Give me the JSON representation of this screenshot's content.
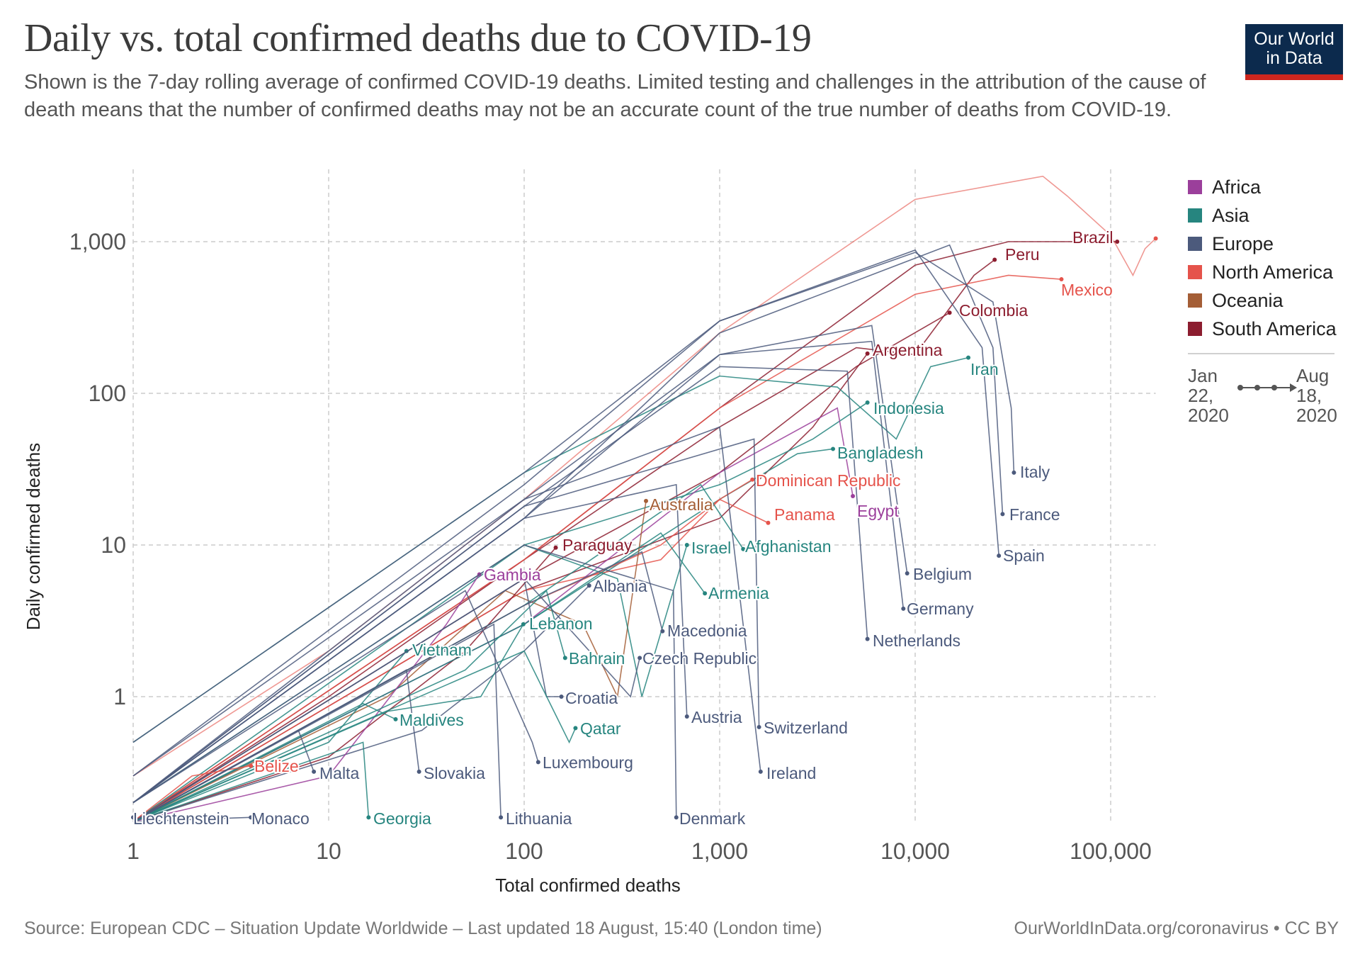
{
  "header": {
    "title": "Daily vs. total confirmed deaths due to COVID-19",
    "subtitle": "Shown is the 7-day rolling average of confirmed COVID-19 deaths. Limited testing and challenges in the attribution of the cause of death means that the number of confirmed deaths may not be an accurate count of the true number of deaths from COVID-19.",
    "logo_text": [
      "Our World",
      "in Data"
    ]
  },
  "legend": {
    "items": [
      {
        "label": "Africa",
        "color": "#9b3f9b"
      },
      {
        "label": "Asia",
        "color": "#26857f"
      },
      {
        "label": "Europe",
        "color": "#4c5a7c"
      },
      {
        "label": "North America",
        "color": "#e5534b"
      },
      {
        "label": "Oceania",
        "color": "#a45e36"
      },
      {
        "label": "South America",
        "color": "#8c1d2f"
      }
    ],
    "timeline_start": "Jan 22, 2020",
    "timeline_end": "Aug 18, 2020"
  },
  "footer": {
    "source": "Source: European CDC – Situation Update Worldwide – Last updated 18 August, 15:40 (London time)",
    "credit": "OurWorldInData.org/coronavirus • CC BY"
  },
  "chart_data": {
    "type": "line",
    "title": "Daily vs. total confirmed deaths due to COVID-19",
    "xlabel": "Total confirmed deaths",
    "ylabel": "Daily confirmed deaths",
    "x_scale": "log",
    "y_scale": "log",
    "xlim": [
      1,
      170000
    ],
    "ylim": [
      0.15,
      3000
    ],
    "x_ticks": [
      {
        "v": 1,
        "label": "1"
      },
      {
        "v": 10,
        "label": "10"
      },
      {
        "v": 100,
        "label": "100"
      },
      {
        "v": 1000,
        "label": "1,000"
      },
      {
        "v": 10000,
        "label": "10,000"
      },
      {
        "v": 100000,
        "label": "100,000"
      }
    ],
    "y_ticks": [
      {
        "v": 1,
        "label": "1"
      },
      {
        "v": 10,
        "label": "10"
      },
      {
        "v": 100,
        "label": "100"
      },
      {
        "v": 1000,
        "label": "1,000"
      }
    ],
    "grid": true,
    "legend_position": "right",
    "series": [
      {
        "continent": "North America",
        "points": [
          [
            1,
            0.3
          ],
          [
            10,
            2
          ],
          [
            100,
            20
          ],
          [
            1000,
            250
          ],
          [
            10000,
            1900
          ],
          [
            45000,
            2700
          ],
          [
            60000,
            2000
          ],
          [
            100000,
            1100
          ],
          [
            130000,
            600
          ],
          [
            150000,
            900
          ],
          [
            170000,
            1050
          ]
        ]
      },
      {
        "name": "Brazil",
        "continent": "South America",
        "points": [
          [
            1,
            0.15
          ],
          [
            10,
            1
          ],
          [
            100,
            8
          ],
          [
            1000,
            80
          ],
          [
            10000,
            700
          ],
          [
            30000,
            1000
          ],
          [
            108000,
            1000
          ]
        ]
      },
      {
        "name": "Peru",
        "continent": "South America",
        "points": [
          [
            1,
            0.15
          ],
          [
            100,
            8
          ],
          [
            1000,
            60
          ],
          [
            5000,
            200
          ],
          [
            10000,
            180
          ],
          [
            20000,
            600
          ],
          [
            25500,
            760
          ]
        ]
      },
      {
        "name": "Mexico",
        "continent": "North America",
        "points": [
          [
            1,
            0.15
          ],
          [
            100,
            8
          ],
          [
            1000,
            80
          ],
          [
            10000,
            450
          ],
          [
            30000,
            600
          ],
          [
            56000,
            565
          ]
        ]
      },
      {
        "name": "Colombia",
        "continent": "South America",
        "points": [
          [
            1,
            0.15
          ],
          [
            100,
            6
          ],
          [
            1000,
            30
          ],
          [
            5000,
            150
          ],
          [
            15000,
            340
          ]
        ]
      },
      {
        "name": "Argentina",
        "continent": "South America",
        "points": [
          [
            1,
            0.15
          ],
          [
            100,
            5
          ],
          [
            1000,
            15
          ],
          [
            3000,
            60
          ],
          [
            5700,
            183
          ]
        ]
      },
      {
        "name": "Iran",
        "continent": "Asia",
        "points": [
          [
            1,
            0.5
          ],
          [
            100,
            30
          ],
          [
            1000,
            130
          ],
          [
            4000,
            110
          ],
          [
            8000,
            50
          ],
          [
            12000,
            150
          ],
          [
            18700,
            172
          ]
        ]
      },
      {
        "name": "Indonesia",
        "continent": "Asia",
        "points": [
          [
            1,
            0.2
          ],
          [
            100,
            10
          ],
          [
            1000,
            25
          ],
          [
            3000,
            50
          ],
          [
            5700,
            87
          ]
        ]
      },
      {
        "name": "Bangladesh",
        "continent": "Asia",
        "points": [
          [
            1,
            0.15
          ],
          [
            100,
            3
          ],
          [
            1000,
            20
          ],
          [
            2500,
            40
          ],
          [
            3800,
            43
          ]
        ]
      },
      {
        "name": "Dominican Republic",
        "continent": "North America",
        "points": [
          [
            1,
            0.15
          ],
          [
            100,
            4
          ],
          [
            500,
            10
          ],
          [
            1000,
            20
          ],
          [
            1470,
            27
          ]
        ]
      },
      {
        "name": "Panama",
        "continent": "North America",
        "points": [
          [
            1,
            0.15
          ],
          [
            100,
            5
          ],
          [
            500,
            8
          ],
          [
            1000,
            20
          ],
          [
            1770,
            14
          ]
        ]
      },
      {
        "name": "Egypt",
        "continent": "Africa",
        "points": [
          [
            1,
            0.15
          ],
          [
            100,
            3
          ],
          [
            1000,
            30
          ],
          [
            4000,
            80
          ],
          [
            4800,
            21
          ]
        ]
      },
      {
        "name": "Australia",
        "continent": "Oceania",
        "points": [
          [
            1,
            0.15
          ],
          [
            20,
            1
          ],
          [
            80,
            5
          ],
          [
            200,
            3
          ],
          [
            300,
            1
          ],
          [
            420,
            19.5
          ]
        ]
      },
      {
        "name": "Paraguay",
        "continent": "South America",
        "points": [
          [
            1,
            0.15
          ],
          [
            10,
            0.4
          ],
          [
            50,
            2
          ],
          [
            145,
            9.6
          ]
        ]
      },
      {
        "name": "Israel",
        "continent": "Asia",
        "points": [
          [
            1,
            0.15
          ],
          [
            100,
            10
          ],
          [
            300,
            6
          ],
          [
            400,
            1
          ],
          [
            680,
            10
          ]
        ]
      },
      {
        "name": "Afghanistan",
        "continent": "Asia",
        "points": [
          [
            1,
            0.15
          ],
          [
            100,
            4
          ],
          [
            800,
            25
          ],
          [
            1320,
            9.4
          ]
        ]
      },
      {
        "name": "Italy",
        "continent": "Europe",
        "points": [
          [
            1,
            0.5
          ],
          [
            100,
            30
          ],
          [
            1000,
            300
          ],
          [
            10000,
            850
          ],
          [
            25000,
            400
          ],
          [
            31000,
            80
          ],
          [
            32000,
            30
          ]
        ]
      },
      {
        "name": "France",
        "continent": "Europe",
        "points": [
          [
            1,
            0.2
          ],
          [
            100,
            15
          ],
          [
            1000,
            250
          ],
          [
            15000,
            950
          ],
          [
            25000,
            200
          ],
          [
            28000,
            16
          ]
        ]
      },
      {
        "name": "Spain",
        "continent": "Europe",
        "points": [
          [
            1,
            0.3
          ],
          [
            100,
            25
          ],
          [
            1000,
            300
          ],
          [
            10000,
            880
          ],
          [
            22000,
            200
          ],
          [
            26800,
            8.5
          ]
        ]
      },
      {
        "name": "Belgium",
        "continent": "Europe",
        "points": [
          [
            1,
            0.2
          ],
          [
            100,
            20
          ],
          [
            1000,
            180
          ],
          [
            6000,
            280
          ],
          [
            9100,
            6.5
          ]
        ]
      },
      {
        "name": "Germany",
        "continent": "Europe",
        "points": [
          [
            1,
            0.2
          ],
          [
            100,
            15
          ],
          [
            1000,
            180
          ],
          [
            6000,
            220
          ],
          [
            8700,
            3.8
          ]
        ]
      },
      {
        "name": "Netherlands",
        "continent": "Europe",
        "points": [
          [
            1,
            0.2
          ],
          [
            100,
            18
          ],
          [
            1000,
            150
          ],
          [
            4500,
            140
          ],
          [
            5700,
            2.4
          ]
        ]
      },
      {
        "name": "Armenia",
        "continent": "Asia",
        "points": [
          [
            1,
            0.15
          ],
          [
            100,
            3
          ],
          [
            500,
            12
          ],
          [
            840,
            4.8
          ]
        ]
      },
      {
        "name": "Albania",
        "continent": "Europe",
        "points": [
          [
            1,
            0.15
          ],
          [
            30,
            0.6
          ],
          [
            100,
            2
          ],
          [
            215,
            5.4
          ]
        ]
      },
      {
        "name": "Gambia",
        "continent": "Africa",
        "points": [
          [
            1,
            0.15
          ],
          [
            10,
            0.3
          ],
          [
            40,
            3
          ],
          [
            59,
            6.4
          ]
        ]
      },
      {
        "name": "Lebanon",
        "continent": "Asia",
        "points": [
          [
            1,
            0.15
          ],
          [
            20,
            0.8
          ],
          [
            60,
            1
          ],
          [
            99,
            3
          ]
        ]
      },
      {
        "name": "Macedonia",
        "continent": "Europe",
        "points": [
          [
            1,
            0.15
          ],
          [
            100,
            4
          ],
          [
            400,
            9
          ],
          [
            510,
            2.7
          ]
        ]
      },
      {
        "name": "Vietnam",
        "continent": "Asia",
        "points": [
          [
            1,
            0.15
          ],
          [
            10,
            0.5
          ],
          [
            25,
            2
          ]
        ]
      },
      {
        "name": "Bahrain",
        "continent": "Asia",
        "points": [
          [
            1,
            0.15
          ],
          [
            50,
            1.5
          ],
          [
            130,
            5
          ],
          [
            162,
            1.8
          ]
        ]
      },
      {
        "name": "Czech Republic",
        "continent": "Europe",
        "points": [
          [
            1,
            0.15
          ],
          [
            100,
            6
          ],
          [
            350,
            1
          ],
          [
            390,
            1.8
          ]
        ]
      },
      {
        "name": "Croatia",
        "continent": "Europe",
        "points": [
          [
            1,
            0.15
          ],
          [
            100,
            6
          ],
          [
            130,
            1
          ],
          [
            155,
            1
          ]
        ]
      },
      {
        "name": "Maldives",
        "continent": "Asia",
        "points": [
          [
            1,
            0.15
          ],
          [
            15,
            0.9
          ],
          [
            22,
            0.71
          ]
        ]
      },
      {
        "name": "Austria",
        "continent": "Europe",
        "points": [
          [
            1,
            0.2
          ],
          [
            100,
            15
          ],
          [
            600,
            25
          ],
          [
            680,
            0.74
          ]
        ]
      },
      {
        "name": "Qatar",
        "continent": "Asia",
        "points": [
          [
            1,
            0.15
          ],
          [
            100,
            2
          ],
          [
            170,
            0.5
          ],
          [
            183,
            0.62
          ]
        ]
      },
      {
        "name": "Switzerland",
        "continent": "Europe",
        "points": [
          [
            1,
            0.2
          ],
          [
            100,
            18
          ],
          [
            1500,
            50
          ],
          [
            1590,
            0.63
          ]
        ]
      },
      {
        "name": "Luxembourg",
        "continent": "Europe",
        "points": [
          [
            1,
            0.2
          ],
          [
            50,
            5
          ],
          [
            110,
            0.5
          ],
          [
            118,
            0.37
          ]
        ]
      },
      {
        "name": "Belize",
        "continent": "North America",
        "points": [
          [
            1,
            0.15
          ],
          [
            2,
            0.3
          ],
          [
            4,
            0.35
          ]
        ]
      },
      {
        "name": "Malta",
        "continent": "Europe",
        "points": [
          [
            1,
            0.15
          ],
          [
            7,
            0.6
          ],
          [
            8.4,
            0.32
          ]
        ]
      },
      {
        "name": "Slovakia",
        "continent": "Europe",
        "points": [
          [
            1,
            0.15
          ],
          [
            25,
            1.5
          ],
          [
            29,
            0.32
          ]
        ]
      },
      {
        "name": "Ireland",
        "continent": "Europe",
        "points": [
          [
            1,
            0.3
          ],
          [
            100,
            20
          ],
          [
            1000,
            60
          ],
          [
            1620,
            0.32
          ]
        ]
      },
      {
        "name": "Liechtenstein",
        "continent": "Europe",
        "points": [
          [
            1,
            0.16
          ]
        ]
      },
      {
        "name": "Monaco",
        "continent": "Europe",
        "points": [
          [
            1,
            0.15
          ],
          [
            4,
            0.16
          ]
        ]
      },
      {
        "name": "Georgia",
        "continent": "Asia",
        "points": [
          [
            1,
            0.15
          ],
          [
            15,
            0.5
          ],
          [
            16,
            0.16
          ]
        ]
      },
      {
        "name": "Lithuania",
        "continent": "Europe",
        "points": [
          [
            1,
            0.15
          ],
          [
            70,
            3
          ],
          [
            76,
            0.16
          ]
        ]
      },
      {
        "name": "Denmark",
        "continent": "Europe",
        "points": [
          [
            1,
            0.2
          ],
          [
            100,
            10
          ],
          [
            580,
            5
          ],
          [
            600,
            0.16
          ]
        ]
      }
    ]
  }
}
